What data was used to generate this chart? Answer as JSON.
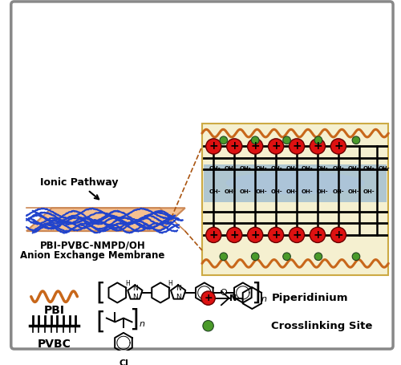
{
  "bg_color": "#ffffff",
  "border_color": "#999999",
  "membrane_color": "#f5c090",
  "ionic_channel_color_light": "#a0b8d8",
  "ionic_channel_color_dark": "#7090b8",
  "pbi_line_color": "#c8671a",
  "red_circle_color": "#dd1111",
  "green_dot_color": "#4a9a2a",
  "label_pbi": "PBI",
  "label_pvbc": "PVBC",
  "label_piperidinium": "Piperidinium",
  "label_crosslink": "Crosslinking Site",
  "label_membrane_1": "PBI-PVBC-NMPD/OH",
  "label_membrane_2": "Anion Exchange Membrane",
  "label_ionic": "Ionic Pathway"
}
